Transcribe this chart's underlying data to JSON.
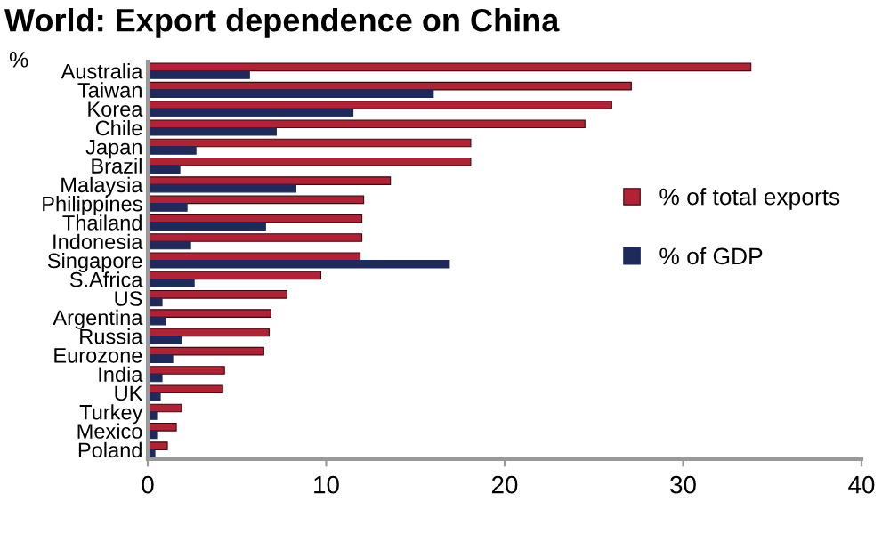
{
  "chart_data": {
    "type": "bar",
    "orientation": "horizontal",
    "title": "World: Export dependence on China",
    "ylabel": "%",
    "categories": [
      "Australia",
      "Taiwan",
      "Korea",
      "Chile",
      "Japan",
      "Brazil",
      "Malaysia",
      "Philippines",
      "Thailand",
      "Indonesia",
      "Singapore",
      "S.Africa",
      "US",
      "Argentina",
      "Russia",
      "Eurozone",
      "India",
      "UK",
      "Turkey",
      "Mexico",
      "Poland"
    ],
    "series": [
      {
        "name": "% of total exports",
        "color": "#b22234",
        "values": [
          33.8,
          27.1,
          26.0,
          24.5,
          18.1,
          18.1,
          13.6,
          12.1,
          12.0,
          12.0,
          11.9,
          9.7,
          7.8,
          6.9,
          6.8,
          6.5,
          4.3,
          4.2,
          1.9,
          1.6,
          1.1
        ]
      },
      {
        "name": "% of GDP",
        "color": "#1f2a5c",
        "values": [
          5.7,
          16.0,
          11.5,
          7.2,
          2.7,
          1.8,
          8.3,
          2.2,
          6.6,
          2.4,
          16.9,
          2.6,
          0.8,
          1.0,
          1.9,
          1.4,
          0.8,
          0.7,
          0.5,
          0.5,
          0.4
        ]
      }
    ],
    "xlim": [
      0,
      40
    ],
    "xticks": [
      0,
      10,
      20,
      30,
      40
    ],
    "grid": false,
    "legend": "right"
  }
}
